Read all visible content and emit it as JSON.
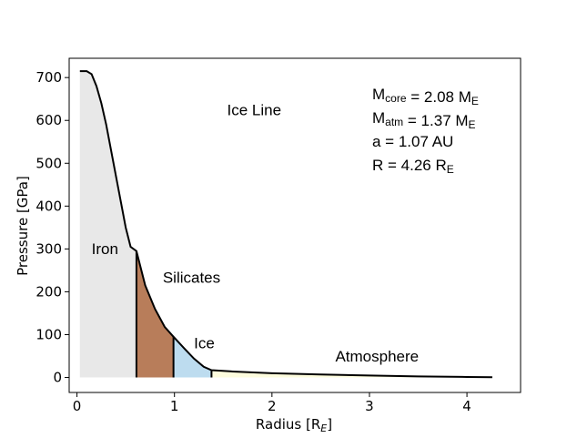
{
  "chart_data": {
    "type": "area",
    "title": "",
    "xlabel": {
      "main": "Radius [R",
      "sub": "E",
      "close": "]"
    },
    "ylabel": "Pressure [GPa]",
    "xlim": [
      -0.08,
      4.55
    ],
    "ylim": [
      -35,
      745
    ],
    "xticks": [
      0,
      1,
      2,
      3,
      4
    ],
    "yticks": [
      0,
      100,
      200,
      300,
      400,
      500,
      600,
      700
    ],
    "grid": false,
    "legend": "none",
    "curve": {
      "r": [
        0.03,
        0.1,
        0.15,
        0.2,
        0.25,
        0.3,
        0.35,
        0.4,
        0.45,
        0.5,
        0.55,
        0.61,
        0.7,
        0.8,
        0.9,
        0.99,
        1.1,
        1.2,
        1.3,
        1.38,
        1.6,
        2.0,
        2.5,
        3.0,
        3.5,
        4.0,
        4.26
      ],
      "p": [
        715,
        715,
        708,
        680,
        640,
        590,
        530,
        470,
        410,
        350,
        305,
        295,
        215,
        160,
        118,
        95,
        68,
        44,
        25,
        17,
        14,
        10,
        7,
        4.5,
        2.5,
        1.2,
        0.5
      ]
    },
    "layers": [
      {
        "name": "Iron",
        "r_start": 0.03,
        "r_end": 0.61,
        "color": "#e8e8e8"
      },
      {
        "name": "Silicates",
        "r_start": 0.61,
        "r_end": 0.99,
        "color": "#b87d5a"
      },
      {
        "name": "Ice",
        "r_start": 0.99,
        "r_end": 1.38,
        "color": "#bddcef"
      },
      {
        "name": "Atmosphere",
        "r_start": 1.38,
        "r_end": 4.26,
        "color": "#fdfcdd"
      }
    ],
    "annotations": [
      {
        "text": "Ice Line",
        "x": 1.54,
        "y": 612
      },
      {
        "text": "Iron",
        "x": 0.15,
        "y": 288
      },
      {
        "text": "Silicates",
        "x": 0.88,
        "y": 221
      },
      {
        "text": "Ice",
        "x": 1.2,
        "y": 68
      },
      {
        "text": "Atmosphere",
        "x": 2.65,
        "y": 37
      }
    ],
    "info": [
      {
        "main": "M",
        "sub": "core",
        "rest": " = 2.08 M",
        "sub2": "E"
      },
      {
        "main": "M",
        "sub": "atm",
        "rest": " = 1.37 M",
        "sub2": "E"
      },
      {
        "main": "a = 1.07 AU",
        "sub": "",
        "rest": "",
        "sub2": ""
      },
      {
        "main": "R = 4.26 R",
        "sub": "E",
        "rest": "",
        "sub2": ""
      }
    ]
  }
}
